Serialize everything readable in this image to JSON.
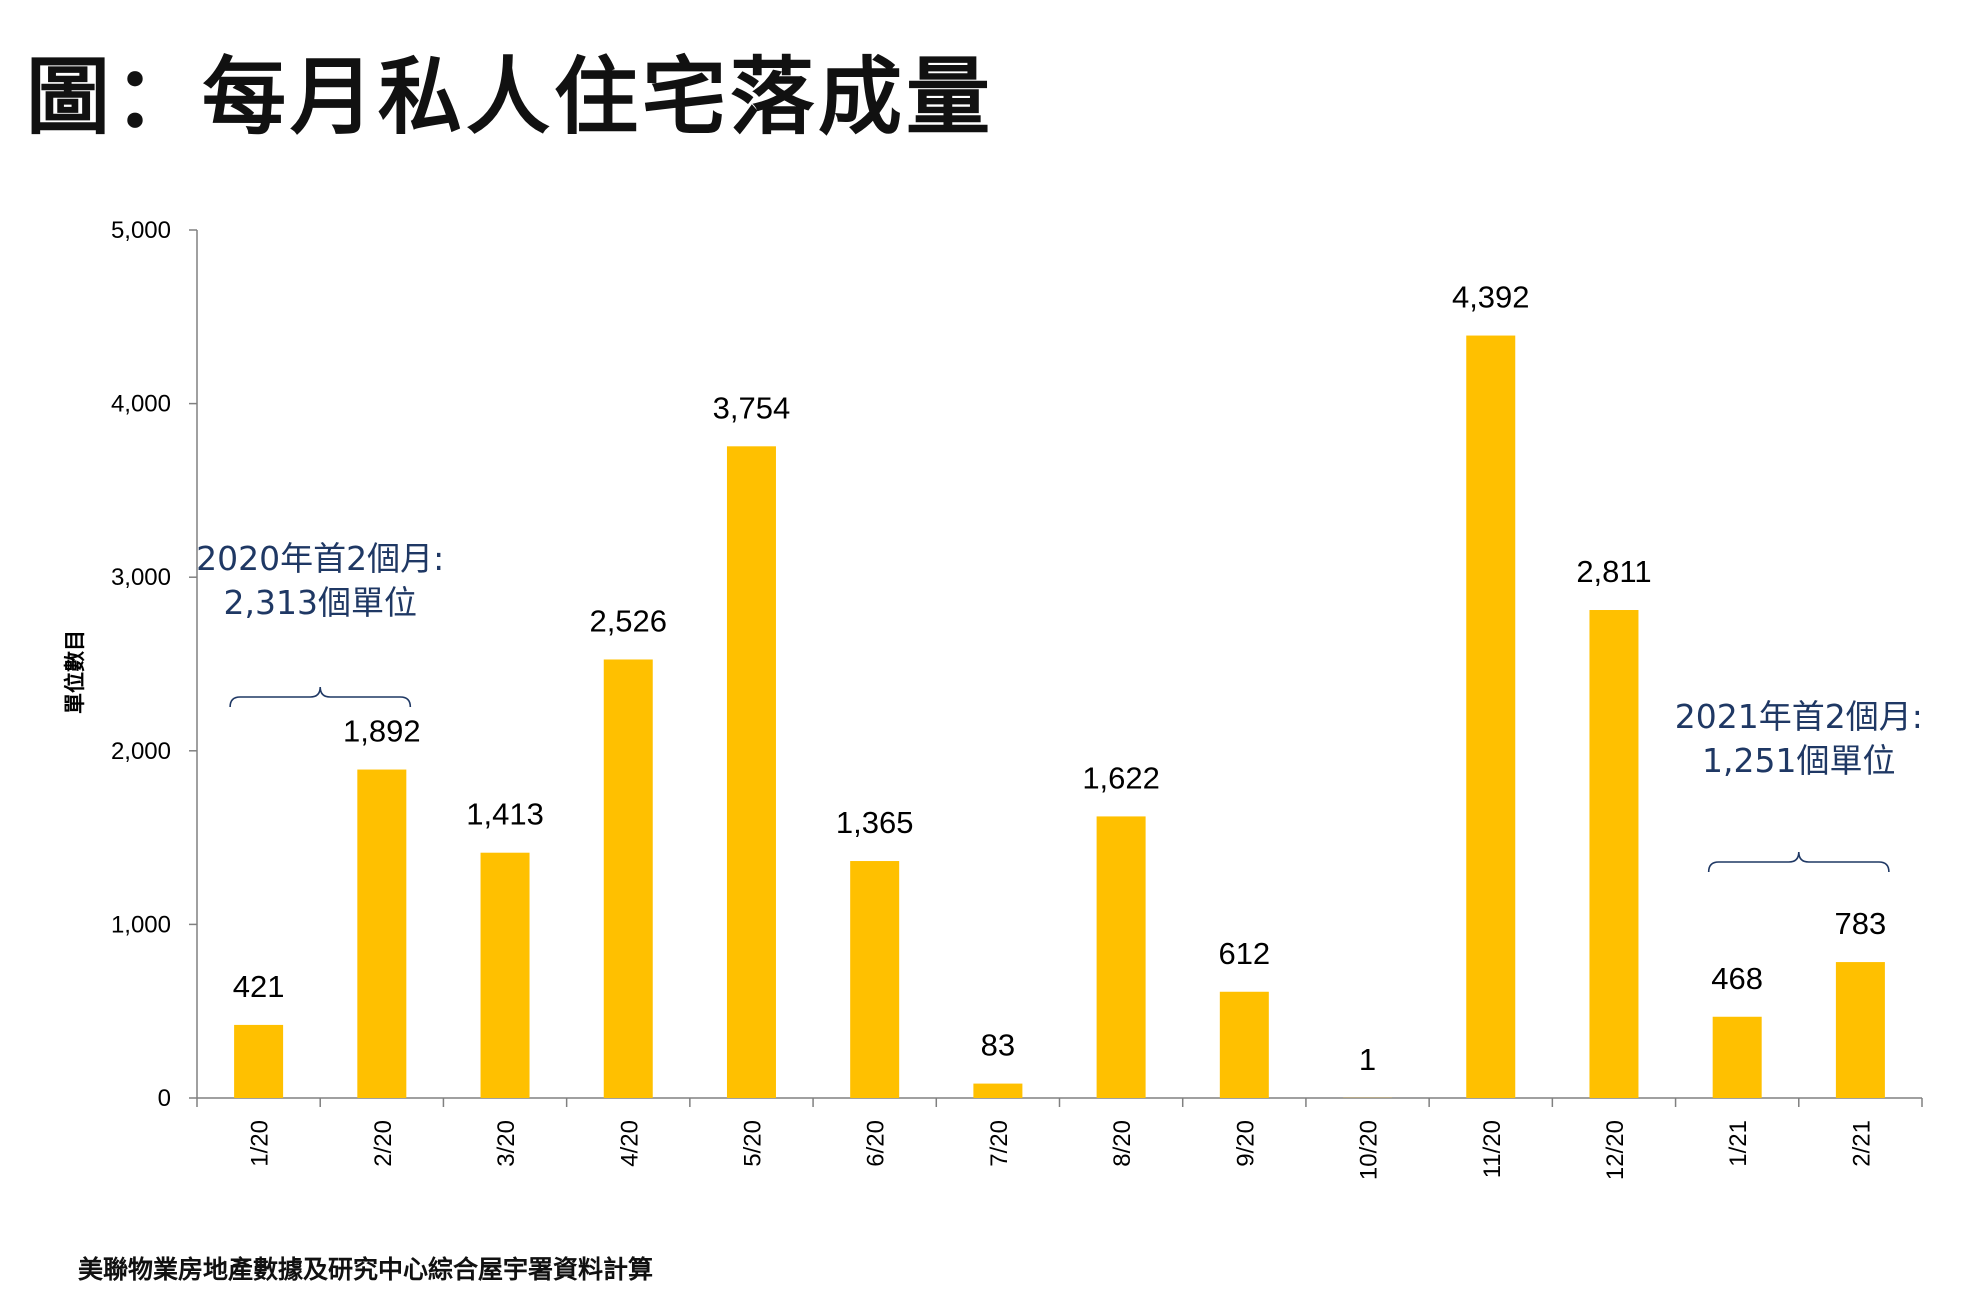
{
  "title": "圖：每月私人住宅落成量",
  "source": "美聯物業房地產數據及研究中心綜合屋宇署資料計算",
  "chart_data": {
    "type": "bar",
    "categories": [
      "1/20",
      "2/20",
      "3/20",
      "4/20",
      "5/20",
      "6/20",
      "7/20",
      "8/20",
      "9/20",
      "10/20",
      "11/20",
      "12/20",
      "1/21",
      "2/21"
    ],
    "values": [
      421,
      1892,
      1413,
      2526,
      3754,
      1365,
      83,
      1622,
      612,
      1,
      4392,
      2811,
      468,
      783
    ],
    "value_labels": [
      "421",
      "1,892",
      "1,413",
      "2,526",
      "3,754",
      "1,365",
      "83",
      "1,622",
      "612",
      "1",
      "4,392",
      "2,811",
      "468",
      "783"
    ],
    "ylabel": "單位數目",
    "ylim": [
      0,
      5000
    ],
    "yticks": [
      0,
      1000,
      2000,
      3000,
      4000,
      5000
    ],
    "ytick_labels": [
      "0",
      "1,000",
      "2,000",
      "3,000",
      "4,000",
      "5,000"
    ],
    "bar_color": "#ffc000",
    "grid": false,
    "annotations": [
      {
        "lines": [
          "2020年首2個月:",
          "2,313個單位"
        ],
        "spans": [
          "1/20",
          "2/20"
        ]
      },
      {
        "lines": [
          "2021年首2個月:",
          "1,251個單位"
        ],
        "spans": [
          "1/21",
          "2/21"
        ]
      }
    ]
  }
}
